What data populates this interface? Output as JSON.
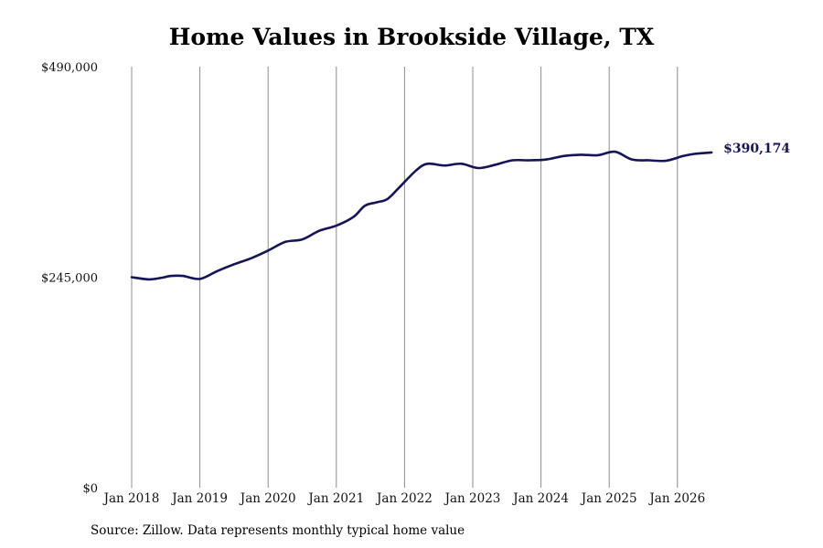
{
  "source": "Source: Zillow. Data represents monthly typical home value",
  "colors": {
    "line": "#14145a",
    "grid": "#8c8c8c",
    "end_label": "#14145a"
  },
  "chart_data": {
    "type": "line",
    "title": "Home Values in Brookside Village, TX",
    "xlabel": "",
    "ylabel": "",
    "ylim": [
      0,
      490000
    ],
    "yticks": [
      {
        "value": 0,
        "label": "$0"
      },
      {
        "value": 245000,
        "label": "$245,000"
      },
      {
        "value": 490000,
        "label": "$490,000"
      }
    ],
    "xticks": [
      "Jan 2018",
      "Jan 2019",
      "Jan 2020",
      "Jan 2021",
      "Jan 2022",
      "Jan 2023",
      "Jan 2024",
      "Jan 2025",
      "Jan 2026"
    ],
    "grid": "vertical lines at x ticks",
    "end_label": "$390,174",
    "x_start": "2018-01",
    "x_end": "2026-07",
    "points": [
      [
        "2018-01",
        245000
      ],
      [
        "2018-04",
        242500
      ],
      [
        "2018-06",
        244000
      ],
      [
        "2018-08",
        246500
      ],
      [
        "2018-10",
        246500
      ],
      [
        "2019-01",
        243000
      ],
      [
        "2019-04",
        252000
      ],
      [
        "2019-07",
        260000
      ],
      [
        "2019-10",
        267000
      ],
      [
        "2020-01",
        276000
      ],
      [
        "2020-04",
        286000
      ],
      [
        "2020-07",
        289000
      ],
      [
        "2020-10",
        299000
      ],
      [
        "2021-01",
        305000
      ],
      [
        "2021-04",
        315000
      ],
      [
        "2021-06",
        328000
      ],
      [
        "2021-08",
        332000
      ],
      [
        "2021-10",
        336000
      ],
      [
        "2021-12",
        349000
      ],
      [
        "2022-03",
        369000
      ],
      [
        "2022-05",
        377000
      ],
      [
        "2022-08",
        375000
      ],
      [
        "2022-11",
        377000
      ],
      [
        "2023-02",
        372000
      ],
      [
        "2023-05",
        376000
      ],
      [
        "2023-08",
        381000
      ],
      [
        "2023-11",
        381000
      ],
      [
        "2024-02",
        382000
      ],
      [
        "2024-05",
        386000
      ],
      [
        "2024-08",
        387500
      ],
      [
        "2024-11",
        387000
      ],
      [
        "2025-02",
        391000
      ],
      [
        "2025-05",
        382000
      ],
      [
        "2025-08",
        381000
      ],
      [
        "2025-11",
        380500
      ],
      [
        "2026-02",
        386000
      ],
      [
        "2026-04",
        388500
      ],
      [
        "2026-07",
        390174
      ]
    ]
  }
}
